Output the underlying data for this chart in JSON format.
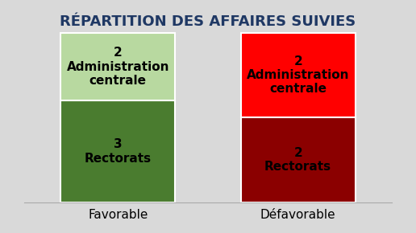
{
  "title": "RÉPARTITION DES AFFAIRES SUIVIES",
  "background_color": "#d9d9d9",
  "columns": [
    {
      "label": "Favorable",
      "segments": [
        {
          "value": 3,
          "text": "3\nRectorats",
          "color": "#4a7c2f"
        },
        {
          "value": 2,
          "text": "2\nAdministration\ncentrale",
          "color": "#b8d9a0"
        }
      ]
    },
    {
      "label": "Défavorable",
      "segments": [
        {
          "value": 2,
          "text": "2\nRectorats",
          "color": "#8b0000"
        },
        {
          "value": 2,
          "text": "2\nAdministration\ncentrale",
          "color": "#ff0000"
        }
      ]
    }
  ],
  "title_color": "#1f3864",
  "title_fontsize": 13,
  "label_fontsize": 11,
  "segment_fontsize": 11,
  "border_color": "#ffffff",
  "border_width": 1.5
}
